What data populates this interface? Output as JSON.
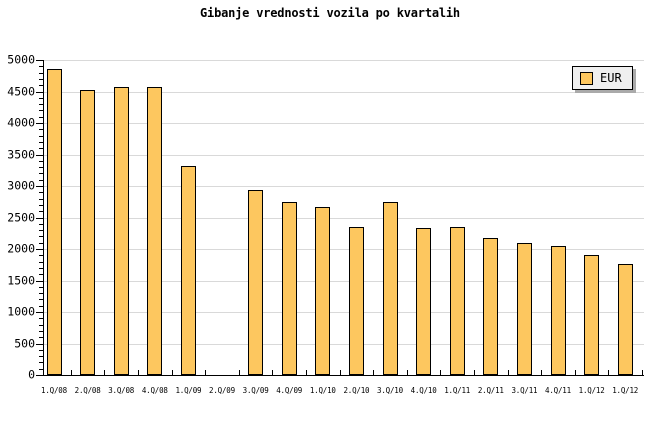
{
  "title": "Gibanje vrednosti vozila po kvartalih",
  "legend": {
    "label": "EUR"
  },
  "chart_data": {
    "type": "bar",
    "title": "Gibanje vrednosti vozila po kvartalih",
    "categories": [
      "1.Q/08",
      "2.Q/08",
      "3.Q/08",
      "4.Q/08",
      "1.Q/09",
      "2.Q/09",
      "3.Q/09",
      "4.Q/09",
      "1.Q/10",
      "2.Q/10",
      "3.Q/10",
      "4.Q/10",
      "1.Q/11",
      "2.Q/11",
      "3.Q/11",
      "4.Q/11",
      "1.Q/12",
      "1.Q/12"
    ],
    "series": [
      {
        "name": "EUR",
        "values": [
          4850,
          4520,
          4570,
          4570,
          3320,
          null,
          2940,
          2740,
          2670,
          2350,
          2740,
          2340,
          2350,
          2170,
          2100,
          2040,
          1900,
          1760
        ]
      }
    ],
    "note_missing_value_category": "2.Q/09",
    "xlabel": "",
    "ylabel": "",
    "ylim": [
      0,
      5000
    ],
    "y_tick_interval": 500,
    "y_minor_tick_interval": 100,
    "y_tick_labels": [
      "0",
      "500",
      "1000",
      "1500",
      "2000",
      "2500",
      "3000",
      "3500",
      "4000",
      "4500",
      "5000"
    ],
    "grid": "horizontal",
    "legend_position": "top-right",
    "colors": {
      "bar_fill": "#FDC75F",
      "bar_border": "#000000",
      "grid": "#D9D9D9",
      "axis": "#000000",
      "legend_bg": "#EFEFEF",
      "legend_shadow": "#AAAAAA",
      "background": "#FFFFFF",
      "text": "#000000"
    }
  }
}
